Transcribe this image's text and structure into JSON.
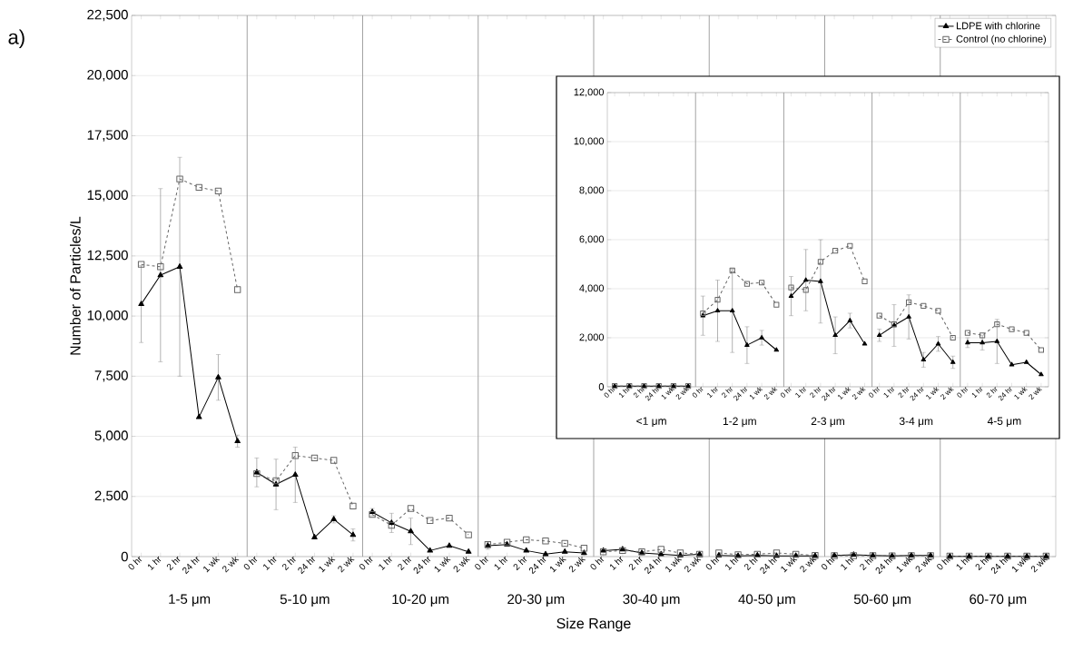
{
  "chart_data": [
    {
      "type": "line",
      "title": "a)",
      "xlabel": "Size Range",
      "ylabel": "Number of Particles/L",
      "categories": [
        "0 hr",
        "1 hr",
        "2 hr",
        "24 hr",
        "1 wk",
        "2 wk",
        "0 hr",
        "1 hr",
        "2 hr",
        "24 hr",
        "1 wk",
        "2 wk",
        "0 hr",
        "1 hr",
        "2 hr",
        "24 hr",
        "1 wk",
        "2 wk",
        "0 hr",
        "1 hr",
        "2 hr",
        "24 hr",
        "1 wk",
        "2 wk",
        "0 hr",
        "1 hr",
        "2 hr",
        "24 hr",
        "1 wk",
        "2 wk",
        "0 hr",
        "1 hr",
        "2 hr",
        "24 hr",
        "1 wk",
        "2 wk",
        "0 hr",
        "1 hr",
        "2 hr",
        "24 hr",
        "1 wk",
        "2 wk",
        "0 hr",
        "1 hr",
        "2 hr",
        "24 hr",
        "1 wk",
        "2 wk"
      ],
      "series": [
        {
          "name": "LDPE with chlorine",
          "color": "#000000",
          "marker": "triangle",
          "line_style": "solid",
          "values": [
            10500,
            11700,
            12050,
            5800,
            7450,
            4800,
            3500,
            3000,
            3400,
            800,
            1550,
            900,
            1850,
            1400,
            1050,
            250,
            450,
            200,
            450,
            500,
            250,
            100,
            200,
            150,
            250,
            300,
            150,
            100,
            50,
            100,
            50,
            30,
            50,
            30,
            30,
            30,
            50,
            80,
            50,
            30,
            50,
            50,
            10,
            10,
            10,
            10,
            10,
            10
          ],
          "errors": [
            1600,
            3600,
            4550,
            null,
            950,
            250,
            600,
            1050,
            1150,
            null,
            150,
            250,
            150,
            400,
            550,
            null,
            null,
            null,
            150,
            null,
            null,
            null,
            null,
            null,
            null,
            null,
            null,
            null,
            null,
            null,
            null,
            null,
            null,
            null,
            null,
            null,
            null,
            null,
            null,
            null,
            null,
            null,
            null,
            null,
            null,
            null,
            null,
            null
          ]
        },
        {
          "name": "Control (no chlorine)",
          "color": "#666666",
          "marker": "square",
          "line_style": "dashed",
          "values": [
            12150,
            12050,
            15700,
            15350,
            15200,
            11100,
            3450,
            3150,
            4200,
            4100,
            4000,
            2100,
            1750,
            1300,
            2000,
            1500,
            1600,
            900,
            500,
            600,
            700,
            650,
            550,
            350,
            200,
            250,
            200,
            300,
            150,
            100,
            150,
            80,
            100,
            150,
            100,
            50,
            40,
            40,
            40,
            30,
            40,
            40,
            20,
            20,
            20,
            20,
            20,
            20
          ]
        }
      ],
      "ylim": [
        0,
        22500
      ],
      "yticks": [
        {
          "value": 0,
          "label": "0"
        },
        {
          "value": 2500,
          "label": "2,500"
        },
        {
          "value": 5000,
          "label": "5,000"
        },
        {
          "value": 7500,
          "label": "7,500"
        },
        {
          "value": 10000,
          "label": "10,000"
        },
        {
          "value": 12500,
          "label": "12,500"
        },
        {
          "value": 15000,
          "label": "15,000"
        },
        {
          "value": 17500,
          "label": "17,500"
        },
        {
          "value": 20000,
          "label": "20,000"
        },
        {
          "value": 22500,
          "label": "22,500"
        }
      ],
      "annotations": [
        "1-5 μm",
        "5-10 μm",
        "10-20 μm",
        "20-30 μm",
        "30-40 μm",
        "40-50 μm",
        "50-60 μm",
        "60-70 μm"
      ],
      "grid": "y",
      "legend": "top right"
    },
    {
      "type": "line",
      "categories": [
        "0 hr",
        "1 hr",
        "2 hr",
        "24 hr",
        "1 wk",
        "2 wk",
        "0 hr",
        "1 hr",
        "2 hr",
        "24 hr",
        "1 wk",
        "2 wk",
        "0 hr",
        "1 hr",
        "2 hr",
        "24 hr",
        "1 wk",
        "2 wk",
        "0 hr",
        "1 hr",
        "2 hr",
        "24 hr",
        "1 wk",
        "2 wk",
        "0 hr",
        "1 hr",
        "2 hr",
        "24 hr",
        "1 wk",
        "2 wk"
      ],
      "series": [
        {
          "color": "#000000",
          "marker": "triangle",
          "line_style": "solid",
          "values": [
            30,
            30,
            30,
            30,
            30,
            30,
            2900,
            3100,
            3100,
            1700,
            2000,
            1500,
            3700,
            4350,
            4300,
            2100,
            2700,
            1750,
            2100,
            2500,
            2850,
            1100,
            1750,
            1000,
            1800,
            1800,
            1850,
            900,
            1000,
            500
          ],
          "errors": [
            null,
            null,
            null,
            null,
            null,
            null,
            800,
            1250,
            1700,
            750,
            300,
            null,
            800,
            1250,
            1700,
            750,
            300,
            null,
            250,
            850,
            900,
            300,
            300,
            250,
            200,
            300,
            900,
            null,
            null,
            null
          ]
        },
        {
          "color": "#666666",
          "marker": "square",
          "line_style": "dashed",
          "values": [
            30,
            30,
            30,
            30,
            30,
            30,
            3000,
            3550,
            4750,
            4200,
            4250,
            3350,
            4050,
            3950,
            5100,
            5550,
            5750,
            4300,
            2900,
            2550,
            3450,
            3300,
            3100,
            2000,
            2200,
            2100,
            2550,
            2350,
            2200,
            1500
          ]
        }
      ],
      "ylim": [
        0,
        12000
      ],
      "yticks": [
        {
          "value": 0,
          "label": "0"
        },
        {
          "value": 2000,
          "label": "2,000"
        },
        {
          "value": 4000,
          "label": "4,000"
        },
        {
          "value": 6000,
          "label": "6,000"
        },
        {
          "value": 8000,
          "label": "8,000"
        },
        {
          "value": 10000,
          "label": "10,000"
        },
        {
          "value": 12000,
          "label": "12,000"
        }
      ],
      "annotations": [
        "<1 μm",
        "1-2 μm",
        "2-3 μm",
        "3-4 μm",
        "4-5 μm"
      ],
      "grid": "y"
    }
  ]
}
